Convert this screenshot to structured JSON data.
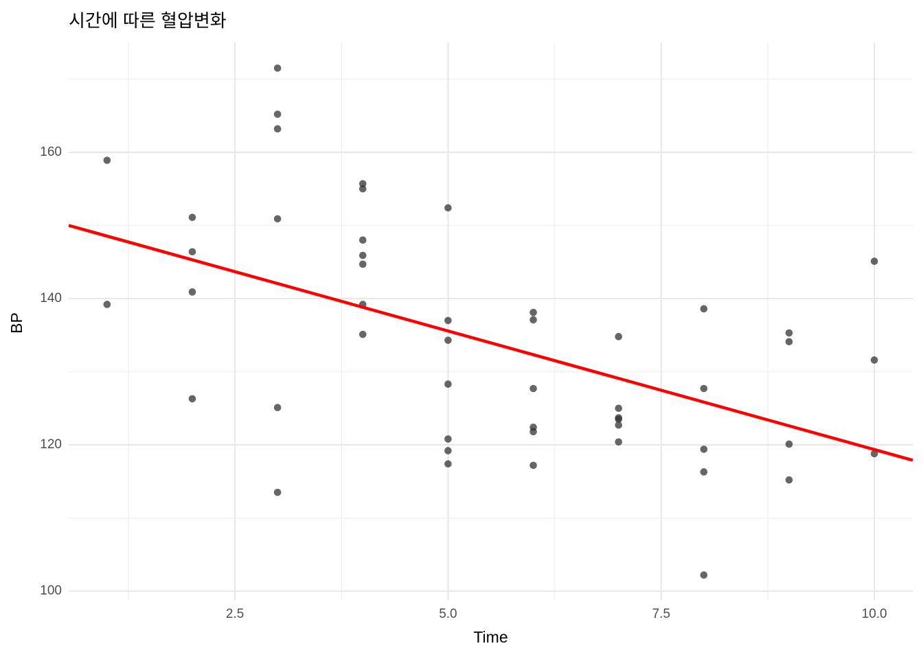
{
  "chart_data": {
    "type": "scatter",
    "title": "시간에 따른 혈압변화",
    "xlabel": "Time",
    "ylabel": "BP",
    "x_ticks": [
      2.5,
      5.0,
      7.5,
      10.0
    ],
    "x_tick_labels": [
      "2.5",
      "5.0",
      "7.5",
      "10.0"
    ],
    "x_minor_ticks": [
      1.25,
      3.75,
      6.25,
      8.75
    ],
    "y_ticks": [
      100,
      120,
      140,
      160
    ],
    "y_tick_labels": [
      "100",
      "120",
      "140",
      "160"
    ],
    "y_minor_ticks": [
      110,
      130,
      150,
      170
    ],
    "xlim": [
      0.55,
      10.45
    ],
    "ylim": [
      98.7,
      175.0
    ],
    "grid": "major-and-minor",
    "legend_position": "none",
    "points": [
      [
        1,
        158.9
      ],
      [
        1,
        139.2
      ],
      [
        2,
        151.1
      ],
      [
        2,
        146.4
      ],
      [
        2,
        140.9
      ],
      [
        2,
        126.3
      ],
      [
        3,
        171.5
      ],
      [
        3,
        165.2
      ],
      [
        3,
        163.2
      ],
      [
        3,
        150.9
      ],
      [
        3,
        125.1
      ],
      [
        3,
        113.5
      ],
      [
        4,
        155.7
      ],
      [
        4,
        155.0
      ],
      [
        4,
        148.0
      ],
      [
        4,
        145.9
      ],
      [
        4,
        144.7
      ],
      [
        4,
        139.2
      ],
      [
        4,
        135.1
      ],
      [
        5,
        152.4
      ],
      [
        5,
        137.0
      ],
      [
        5,
        134.3
      ],
      [
        5,
        128.3
      ],
      [
        5,
        120.8
      ],
      [
        5,
        119.2
      ],
      [
        5,
        117.4
      ],
      [
        6,
        138.1
      ],
      [
        6,
        137.1
      ],
      [
        6,
        127.7
      ],
      [
        6,
        122.4
      ],
      [
        6,
        121.8
      ],
      [
        6,
        117.2
      ],
      [
        7,
        134.8
      ],
      [
        7,
        125.0
      ],
      [
        7,
        123.7
      ],
      [
        7,
        123.5
      ],
      [
        7,
        122.7
      ],
      [
        7,
        120.4
      ],
      [
        8,
        138.6
      ],
      [
        8,
        127.7
      ],
      [
        8,
        119.4
      ],
      [
        8,
        116.3
      ],
      [
        8,
        102.2
      ],
      [
        9,
        135.3
      ],
      [
        9,
        134.1
      ],
      [
        9,
        120.1
      ],
      [
        9,
        115.2
      ],
      [
        10,
        145.1
      ],
      [
        10,
        131.6
      ],
      [
        10,
        118.8
      ]
    ],
    "trend_line": {
      "type": "linear",
      "x_start": 0.55,
      "y_start": 150.0,
      "x_end": 10.45,
      "y_end": 117.9
    },
    "colors": {
      "point": "#333333",
      "point_opacity": 0.75,
      "trend": "#FF0000",
      "grid_major": "#e7e7e7",
      "grid_minor": "#f1f1f1",
      "background": "#ffffff",
      "tick_label": "#4d4d4d",
      "text": "#000000"
    }
  }
}
